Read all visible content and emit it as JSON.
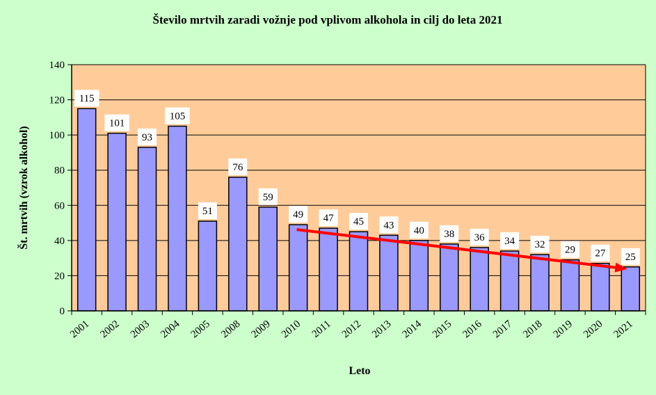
{
  "chart_data": {
    "type": "bar",
    "title": "Število mrtvih zaradi vožnje pod vplivom alkohola in cilj do leta 2021",
    "xlabel": "Leto",
    "ylabel": "Št. mrtvih (vzrok alkohol)",
    "ylim": [
      0,
      140
    ],
    "yticks": [
      0,
      20,
      40,
      60,
      80,
      100,
      120,
      140
    ],
    "grid": true,
    "legend": "none",
    "categories": [
      "2001",
      "2002",
      "2003",
      "2004",
      "2005",
      "2008",
      "2009",
      "2010",
      "2011",
      "2012",
      "2013",
      "2014",
      "2015",
      "2016",
      "2017",
      "2018",
      "2019",
      "2020",
      "2021"
    ],
    "values": [
      115,
      101,
      93,
      105,
      51,
      76,
      59,
      49,
      47,
      45,
      43,
      40,
      38,
      36,
      34,
      32,
      29,
      27,
      25
    ],
    "trend": {
      "from": [
        "2010",
        49
      ],
      "to": [
        "2021",
        25
      ]
    },
    "colors": {
      "background": "#ccffcc",
      "plot_area": "#ffcc99",
      "bar_fill": "#9999ff",
      "bar_stroke": "#000000",
      "trend_arrow": "#ff0000",
      "label_box": "#ffffff"
    }
  }
}
